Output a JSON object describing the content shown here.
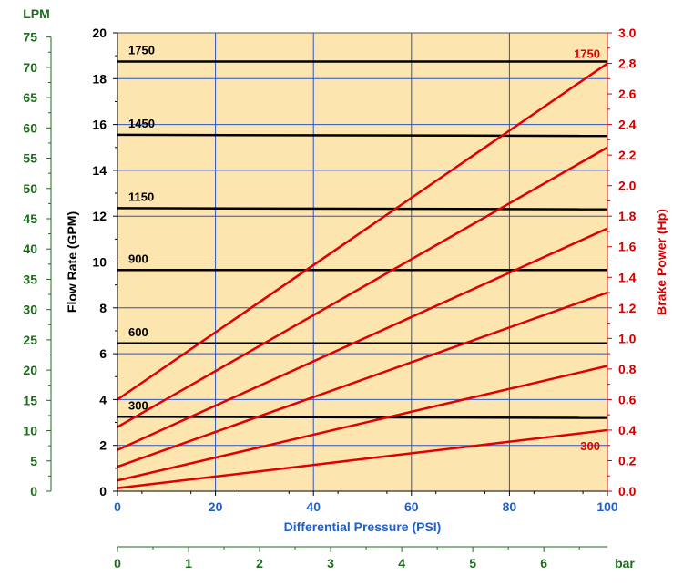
{
  "chart_data": {
    "type": "line",
    "x_axis": {
      "label": "Differential Pressure (PSI)",
      "range": [
        0,
        100
      ],
      "ticks": [
        "0",
        "20",
        "40",
        "60",
        "80",
        "100"
      ],
      "color": "#1f5fc8"
    },
    "x2_axis": {
      "label": "bar",
      "range": [
        0,
        6.895
      ],
      "ticks": [
        "0",
        "1",
        "2",
        "3",
        "4",
        "5",
        "6"
      ],
      "color": "#1e6b1e"
    },
    "y_axis": {
      "label": "Flow Rate (GPM)",
      "range": [
        0,
        20
      ],
      "ticks": [
        "0",
        "2",
        "4",
        "6",
        "8",
        "10",
        "12",
        "14",
        "16",
        "18",
        "20"
      ],
      "color": "#000000"
    },
    "y_lpm_axis": {
      "label": "LPM",
      "range": [
        0,
        75.7
      ],
      "ticks": [
        "0",
        "5",
        "10",
        "15",
        "20",
        "25",
        "30",
        "35",
        "40",
        "45",
        "50",
        "55",
        "60",
        "65",
        "70",
        "75"
      ],
      "color": "#1e6b1e"
    },
    "y2_axis": {
      "label": "Brake Power (Hp)",
      "range": [
        0,
        3.0
      ],
      "ticks": [
        "0.0",
        "0.2",
        "0.4",
        "0.6",
        "0.8",
        "1.0",
        "1.2",
        "1.4",
        "1.6",
        "1.8",
        "2.0",
        "2.2",
        "2.4",
        "2.6",
        "2.8",
        "3.0"
      ],
      "color": "#d40000"
    },
    "flow_series": [
      {
        "label": "1750",
        "x": [
          0,
          100
        ],
        "y": [
          18.75,
          18.75
        ]
      },
      {
        "label": "1450",
        "x": [
          0,
          100
        ],
        "y": [
          15.55,
          15.5
        ]
      },
      {
        "label": "1150",
        "x": [
          0,
          100
        ],
        "y": [
          12.35,
          12.3
        ]
      },
      {
        "label": "900",
        "x": [
          0,
          100
        ],
        "y": [
          9.65,
          9.65
        ]
      },
      {
        "label": "600",
        "x": [
          0,
          100
        ],
        "y": [
          6.45,
          6.45
        ]
      },
      {
        "label": "300",
        "x": [
          0,
          100
        ],
        "y": [
          3.25,
          3.2
        ]
      }
    ],
    "power_series": [
      {
        "rpm": "1750",
        "label": "1750",
        "x": [
          0,
          100
        ],
        "y": [
          0.6,
          2.8
        ]
      },
      {
        "rpm": "1450",
        "label": "",
        "x": [
          0,
          100
        ],
        "y": [
          0.42,
          2.25
        ]
      },
      {
        "rpm": "1150",
        "label": "",
        "x": [
          0,
          100
        ],
        "y": [
          0.27,
          1.72
        ]
      },
      {
        "rpm": "900",
        "label": "",
        "x": [
          0,
          100
        ],
        "y": [
          0.16,
          1.3
        ]
      },
      {
        "rpm": "600",
        "label": "",
        "x": [
          0,
          100
        ],
        "y": [
          0.07,
          0.82
        ]
      },
      {
        "rpm": "300",
        "label": "300",
        "x": [
          0,
          100
        ],
        "y": [
          0.02,
          0.4
        ]
      }
    ],
    "grid": true,
    "plot_background": "#fde5b0",
    "flow_line_color": "#000000",
    "power_line_color": "#e00000",
    "grid_color": "#2b55c0"
  }
}
